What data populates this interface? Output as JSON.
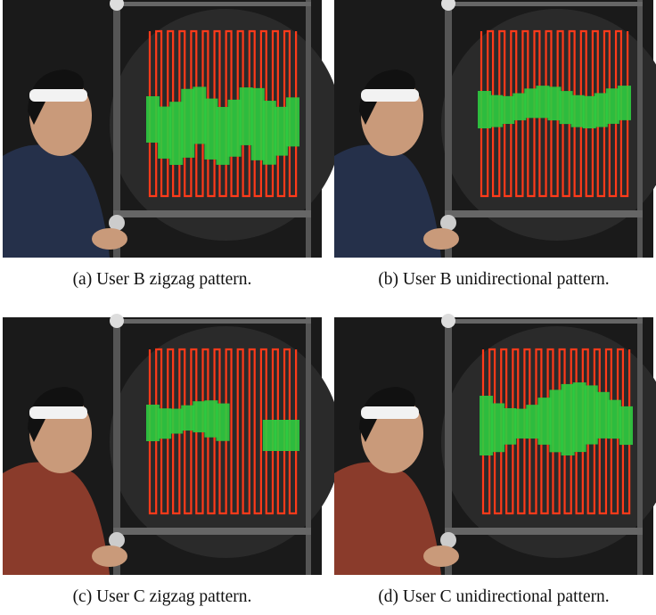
{
  "figure": {
    "subfigures": [
      {
        "caption": "(a) User B zigzag pattern."
      },
      {
        "caption": "(b) User B unidirectional pattern."
      },
      {
        "caption": "(c) User C zigzag pattern."
      },
      {
        "caption": "(d) User C unidirectional pattern."
      }
    ]
  }
}
